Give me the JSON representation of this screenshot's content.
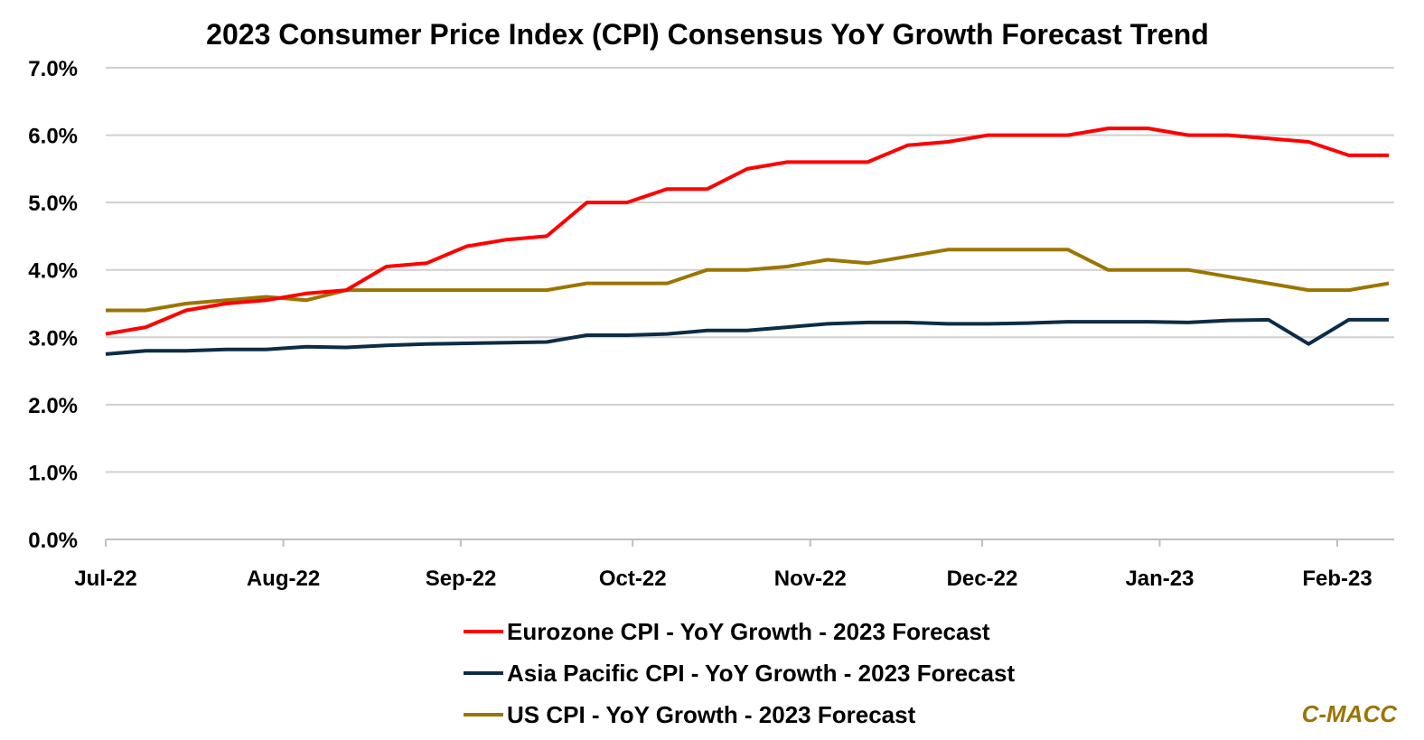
{
  "chart_data": {
    "type": "line",
    "title": "2023 Consumer Price Index (CPI) Consensus YoY Growth Forecast Trend",
    "xlabel": "",
    "ylabel": "",
    "ylim": [
      0,
      7
    ],
    "yticks": [
      "0.0%",
      "1.0%",
      "2.0%",
      "3.0%",
      "4.0%",
      "5.0%",
      "6.0%",
      "7.0%"
    ],
    "xticks": [
      {
        "label": "Jul-22",
        "day": 0
      },
      {
        "label": "Aug-22",
        "day": 31
      },
      {
        "label": "Sep-22",
        "day": 62
      },
      {
        "label": "Oct-22",
        "day": 92
      },
      {
        "label": "Nov-22",
        "day": 123
      },
      {
        "label": "Dec-22",
        "day": 153
      },
      {
        "label": "Jan-23",
        "day": 184
      },
      {
        "label": "Feb-23",
        "day": 215
      }
    ],
    "x_step_days": 7,
    "grid": true,
    "legend_position": "bottom",
    "series": [
      {
        "name": "Eurozone CPI - YoY Growth - 2023 Forecast",
        "color": "#FF0000",
        "values": [
          3.05,
          3.15,
          3.4,
          3.5,
          3.55,
          3.65,
          3.7,
          4.05,
          4.1,
          4.35,
          4.45,
          4.5,
          5.0,
          5.0,
          5.2,
          5.2,
          5.5,
          5.6,
          5.6,
          5.6,
          5.85,
          5.9,
          6.0,
          6.0,
          6.0,
          6.1,
          6.1,
          6.0,
          6.0,
          5.95,
          5.9,
          5.7,
          5.7
        ]
      },
      {
        "name": "Asia Pacific CPI - YoY Growth - 2023 Forecast",
        "color": "#0D2C45",
        "values": [
          2.75,
          2.8,
          2.8,
          2.82,
          2.82,
          2.86,
          2.85,
          2.88,
          2.9,
          2.91,
          2.92,
          2.93,
          3.03,
          3.03,
          3.05,
          3.1,
          3.1,
          3.15,
          3.2,
          3.22,
          3.22,
          3.2,
          3.2,
          3.21,
          3.23,
          3.23,
          3.23,
          3.22,
          3.25,
          3.26,
          2.9,
          3.26,
          3.26
        ]
      },
      {
        "name": "US CPI - YoY Growth - 2023 Forecast",
        "color": "#9A7500",
        "values": [
          3.4,
          3.4,
          3.5,
          3.55,
          3.6,
          3.55,
          3.7,
          3.7,
          3.7,
          3.7,
          3.7,
          3.7,
          3.8,
          3.8,
          3.8,
          4.0,
          4.0,
          4.05,
          4.15,
          4.1,
          4.2,
          4.3,
          4.3,
          4.3,
          4.3,
          4.0,
          4.0,
          4.0,
          3.9,
          3.8,
          3.7,
          3.7,
          3.8
        ]
      }
    ]
  },
  "brand": {
    "text": "C-MACC",
    "color": "#9A7500"
  }
}
